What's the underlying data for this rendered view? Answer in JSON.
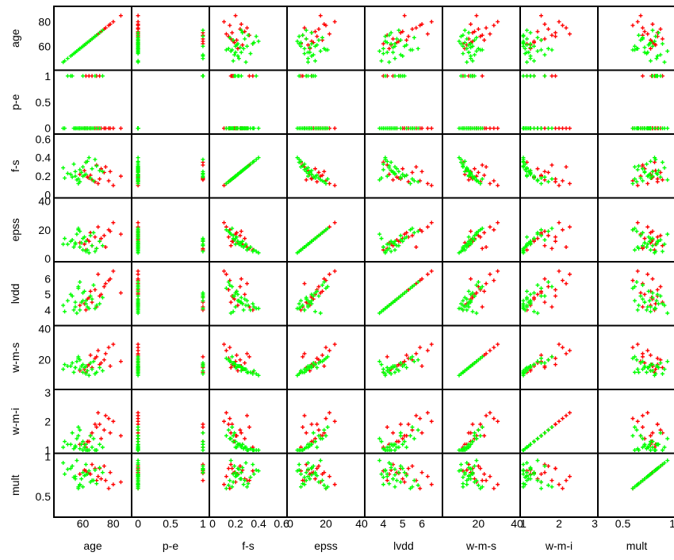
{
  "chart_data": {
    "type": "scatter",
    "title": "",
    "variables": [
      {
        "name": "age",
        "range": [
          43,
          90
        ],
        "ticks": [
          "60",
          "80"
        ]
      },
      {
        "name": "p-e",
        "range": [
          -0.05,
          1.05
        ],
        "ticks": [
          "0",
          "0.5",
          "1"
        ]
      },
      {
        "name": "f-s",
        "range": [
          0,
          0.62
        ],
        "ticks": [
          "0",
          "0.2",
          "0.4",
          "0.6"
        ]
      },
      {
        "name": "epss",
        "range": [
          0,
          40
        ],
        "ticks": [
          "0",
          "20",
          "40"
        ]
      },
      {
        "name": "lvdd",
        "range": [
          3.2,
          6.9
        ],
        "ticks": [
          "4",
          "5",
          "6"
        ]
      },
      {
        "name": "w-m-s",
        "range": [
          3,
          40
        ],
        "ticks": [
          "20",
          "40"
        ]
      },
      {
        "name": "w-m-i",
        "range": [
          1,
          3
        ],
        "ticks": [
          "1",
          "2",
          "3"
        ]
      },
      {
        "name": "mult",
        "range": [
          0.28,
          1.0
        ],
        "ticks": [
          "0.5",
          "1"
        ]
      }
    ],
    "y_tick_labels": [
      [
        "60",
        "80"
      ],
      [
        "0",
        "0.5",
        "1"
      ],
      [
        "0",
        "0.2",
        "0.4",
        "0.6"
      ],
      [
        "0",
        "20",
        "40"
      ],
      [
        "4",
        "5",
        "6"
      ],
      [
        "20",
        "40"
      ],
      [
        "1",
        "2",
        "3"
      ],
      [
        "0.5",
        "1"
      ]
    ],
    "series": [
      {
        "color": "#ff0000",
        "records": [
          [
            78,
            0,
            0.25,
            19,
            6.0,
            16,
            1.6,
            0.8
          ],
          [
            68,
            0,
            0.14,
            15,
            5.3,
            21,
            1.9,
            0.85
          ],
          [
            64,
            1,
            0.18,
            12,
            4.8,
            17,
            1.3,
            0.79
          ],
          [
            75,
            0,
            0.3,
            8,
            5.7,
            24,
            2.2,
            0.7
          ],
          [
            58,
            0,
            0.22,
            11,
            4.3,
            13,
            1.2,
            0.78
          ],
          [
            85,
            0,
            0.2,
            17,
            5.1,
            19,
            1.5,
            0.68
          ],
          [
            62,
            1,
            0.35,
            6,
            4.0,
            12,
            1.1,
            0.82
          ],
          [
            70,
            0,
            0.12,
            22,
            6.3,
            26,
            2.3,
            0.75
          ],
          [
            72,
            0,
            0.28,
            14,
            5.0,
            18,
            1.4,
            0.72
          ],
          [
            66,
            1,
            0.16,
            9,
            4.5,
            15,
            1.6,
            0.9
          ],
          [
            80,
            0,
            0.1,
            25,
            6.5,
            30,
            2.0,
            0.65
          ],
          [
            74,
            0,
            0.24,
            16,
            5.5,
            20,
            1.7,
            0.88
          ],
          [
            63,
            0,
            0.19,
            13,
            4.7,
            16,
            1.3,
            0.8
          ],
          [
            69,
            1,
            0.32,
            7,
            4.2,
            22,
            1.8,
            0.7
          ],
          [
            77,
            0,
            0.15,
            20,
            5.9,
            28,
            2.1,
            0.6
          ],
          [
            61,
            0,
            0.26,
            10,
            4.4,
            14,
            1.2,
            0.83
          ],
          [
            65,
            0,
            0.21,
            18,
            5.2,
            23,
            1.5,
            0.78
          ],
          [
            71,
            1,
            0.17,
            12,
            4.9,
            17,
            1.9,
            0.85
          ]
        ]
      },
      {
        "color": "#00ff00",
        "records": [
          [
            55,
            0,
            0.2,
            10,
            4.2,
            15,
            1.1,
            0.75
          ],
          [
            60,
            0,
            0.3,
            6,
            4.6,
            12,
            1.0,
            0.62
          ],
          [
            52,
            1,
            0.22,
            12,
            5.0,
            16,
            1.2,
            0.85
          ],
          [
            67,
            0,
            0.15,
            18,
            5.6,
            19,
            1.4,
            0.7
          ],
          [
            58,
            0,
            0.27,
            8,
            4.0,
            14,
            1.05,
            0.65
          ],
          [
            62,
            0,
            0.35,
            5,
            4.4,
            11,
            1.0,
            0.9
          ],
          [
            48,
            0,
            0.18,
            14,
            3.9,
            17,
            1.3,
            0.78
          ],
          [
            73,
            1,
            0.25,
            9,
            4.8,
            13,
            1.1,
            0.8
          ],
          [
            57,
            0,
            0.12,
            20,
            5.4,
            21,
            1.5,
            0.6
          ],
          [
            64,
            0,
            0.4,
            4,
            4.1,
            10,
            1.0,
            0.82
          ],
          [
            59,
            0,
            0.24,
            11,
            4.5,
            16,
            1.2,
            0.72
          ],
          [
            53,
            1,
            0.19,
            13,
            4.9,
            18,
            1.6,
            0.88
          ],
          [
            69,
            0,
            0.31,
            7,
            4.3,
            12,
            1.0,
            0.66
          ],
          [
            61,
            0,
            0.21,
            15,
            5.2,
            15,
            1.1,
            0.76
          ],
          [
            56,
            0,
            0.16,
            17,
            3.8,
            19,
            1.4,
            0.95
          ],
          [
            66,
            0,
            0.28,
            9,
            4.7,
            14,
            1.1,
            0.7
          ],
          [
            50,
            1,
            0.23,
            10,
            4.6,
            16,
            1.2,
            0.84
          ],
          [
            63,
            0,
            0.36,
            6,
            4.2,
            13,
            1.0,
            0.78
          ],
          [
            58,
            0,
            0.14,
            19,
            5.8,
            20,
            1.7,
            0.64
          ],
          [
            71,
            0,
            0.26,
            12,
            4.4,
            15,
            1.2,
            0.86
          ],
          [
            54,
            0,
            0.33,
            8,
            4.0,
            12,
            1.05,
            0.74
          ],
          [
            60,
            1,
            0.2,
            14,
            5.1,
            17,
            1.3,
            0.8
          ],
          [
            65,
            0,
            0.18,
            16,
            4.9,
            18,
            1.5,
            0.68
          ],
          [
            47,
            0,
            0.29,
            10,
            4.3,
            14,
            1.1,
            0.92
          ],
          [
            62,
            0,
            0.22,
            12,
            4.6,
            16,
            1.2,
            0.77
          ],
          [
            57,
            0,
            0.17,
            21,
            5.5,
            22,
            1.8,
            0.62
          ],
          [
            68,
            1,
            0.38,
            5,
            4.1,
            11,
            1.0,
            0.83
          ],
          [
            55,
            0,
            0.25,
            11,
            4.5,
            15,
            1.15,
            0.72
          ]
        ]
      }
    ],
    "xlabel": "",
    "ylabel": "",
    "legend": "none",
    "grid": false
  }
}
